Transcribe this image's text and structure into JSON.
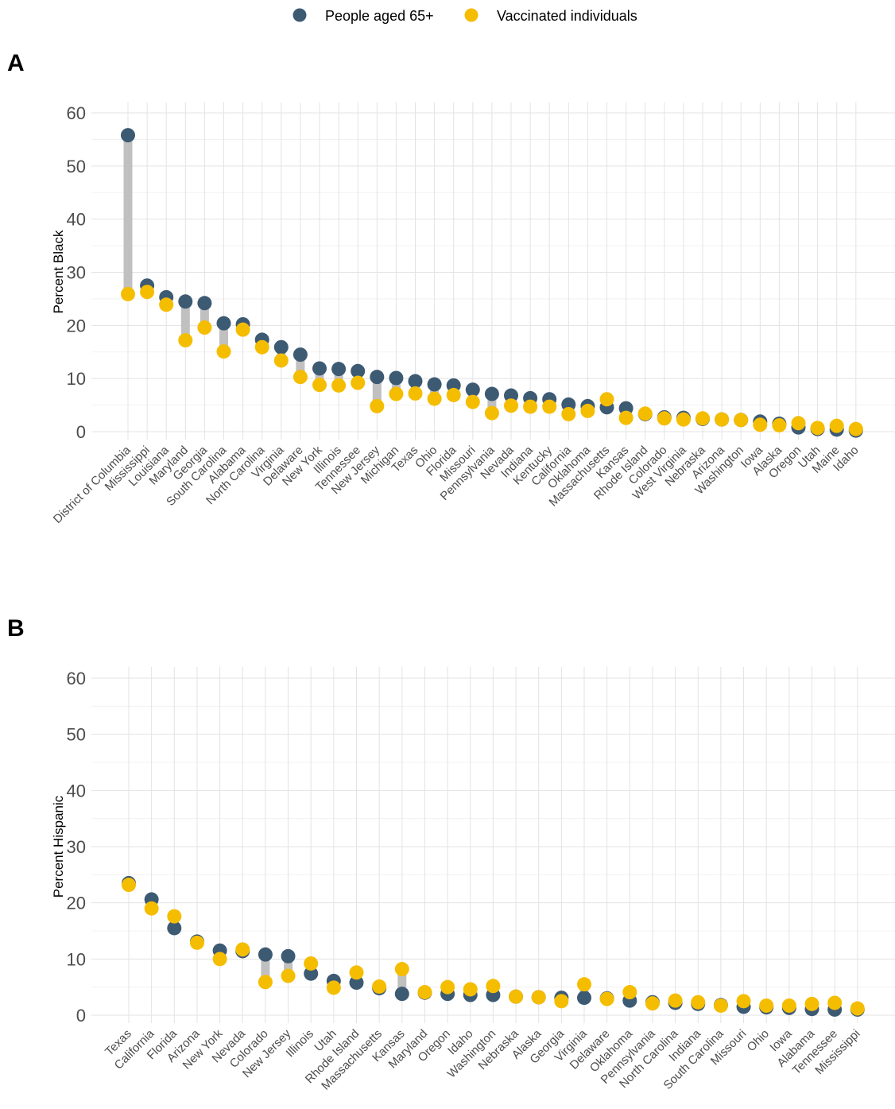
{
  "legend": {
    "items": [
      {
        "label": "People aged 65+",
        "color": "#3d5a73"
      },
      {
        "label": "Vaccinated individuals",
        "color": "#f5bd00"
      }
    ]
  },
  "colors": {
    "segment": "#c0c0c0",
    "grid": "#e3e3e3"
  },
  "chart_data": [
    {
      "type": "dumbbell",
      "panel_label": "A",
      "ylabel": "Percent Black",
      "ylim": [
        0,
        62
      ],
      "yticks": [
        0,
        10,
        20,
        30,
        40,
        50,
        60
      ],
      "grid": true,
      "categories": [
        "District of Columbia",
        "Mississippi",
        "Louisiana",
        "Maryland",
        "Georgia",
        "South Carolina",
        "Alabama",
        "North Carolina",
        "Virginia",
        "Delaware",
        "New York",
        "Illinois",
        "Tennessee",
        "New Jersey",
        "Michigan",
        "Texas",
        "Ohio",
        "Florida",
        "Missouri",
        "Pennsylvania",
        "Nevada",
        "Indiana",
        "Kentucky",
        "California",
        "Oklahoma",
        "Massachusetts",
        "Kansas",
        "Rhode Island",
        "Colorado",
        "West Virginia",
        "Nebraska",
        "Arizona",
        "Washington",
        "Iowa",
        "Alaska",
        "Oregon",
        "Utah",
        "Maine",
        "Idaho"
      ],
      "series": [
        {
          "name": "People aged 65+",
          "values": [
            55.8,
            27.5,
            25.3,
            24.5,
            24.2,
            20.4,
            20.2,
            17.3,
            15.9,
            14.5,
            11.9,
            11.8,
            11.4,
            10.3,
            10.1,
            9.5,
            8.9,
            8.7,
            7.9,
            7.1,
            6.8,
            6.3,
            6.1,
            5.1,
            4.8,
            4.6,
            4.4,
            3.3,
            2.7,
            2.6,
            2.4,
            2.3,
            2.2,
            1.9,
            1.5,
            0.8,
            0.5,
            0.4,
            0.2
          ]
        },
        {
          "name": "Vaccinated individuals",
          "values": [
            25.9,
            26.3,
            23.9,
            17.2,
            19.6,
            15.1,
            19.2,
            15.9,
            13.4,
            10.3,
            8.8,
            8.7,
            9.2,
            4.8,
            7.1,
            7.2,
            6.2,
            6.9,
            5.6,
            3.5,
            4.9,
            4.7,
            4.7,
            3.3,
            3.9,
            6.1,
            2.6,
            3.4,
            2.5,
            2.3,
            2.5,
            2.3,
            2.2,
            1.3,
            1.2,
            1.6,
            0.7,
            1.1,
            0.5
          ]
        }
      ]
    },
    {
      "type": "dumbbell",
      "panel_label": "B",
      "ylabel": "Percent Hispanic",
      "ylim": [
        0,
        62
      ],
      "yticks": [
        0,
        10,
        20,
        30,
        40,
        50,
        60
      ],
      "grid": true,
      "categories": [
        "Texas",
        "California",
        "Florida",
        "Arizona",
        "New York",
        "Nevada",
        "Colorado",
        "New Jersey",
        "Illinois",
        "Utah",
        "Rhode Island",
        "Massachusetts",
        "Kansas",
        "Maryland",
        "Oregon",
        "Idaho",
        "Washington",
        "Nebraska",
        "Alaska",
        "Georgia",
        "Virginia",
        "Delaware",
        "Oklahoma",
        "Pennsylvania",
        "North Carolina",
        "Indiana",
        "South Carolina",
        "Missouri",
        "Ohio",
        "Iowa",
        "Alabama",
        "Tennessee",
        "Mississippi"
      ],
      "series": [
        {
          "name": "People aged 65+",
          "values": [
            23.5,
            20.6,
            15.5,
            13.1,
            11.5,
            11.4,
            10.8,
            10.5,
            7.4,
            6.1,
            5.8,
            4.8,
            3.8,
            4.0,
            3.8,
            3.6,
            3.6,
            3.3,
            3.2,
            3.1,
            3.1,
            3.0,
            2.6,
            2.3,
            2.2,
            2.0,
            1.8,
            1.5,
            1.4,
            1.3,
            1.1,
            1.0,
            1.0
          ]
        },
        {
          "name": "Vaccinated individuals",
          "values": [
            23.2,
            19.0,
            17.6,
            12.9,
            10.0,
            11.7,
            5.9,
            7.0,
            9.2,
            4.9,
            7.6,
            5.1,
            8.2,
            4.1,
            5.0,
            4.6,
            5.2,
            3.3,
            3.2,
            2.5,
            5.5,
            2.9,
            4.1,
            2.1,
            2.6,
            2.3,
            1.7,
            2.5,
            1.7,
            1.7,
            2.0,
            2.2,
            1.2
          ]
        }
      ]
    }
  ]
}
